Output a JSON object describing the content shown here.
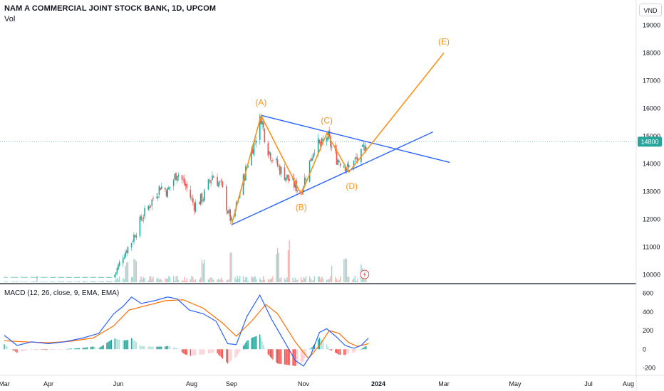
{
  "header": {
    "title": "NAM A COMMERCIAL JOINT STOCK BANK, 1D, UPCOM",
    "volume_label": "Vol",
    "currency": "VND",
    "indicator_label": "MACD (12, 26, close, 9, EMA, EMA)"
  },
  "colors": {
    "up": "#26a69a",
    "down": "#ef5350",
    "wave": "#f7931a",
    "trendline": "#2962ff",
    "macd": "#2962ff",
    "signal": "#ff6d00",
    "last_price_badge": "#26a69a"
  },
  "chart_data": [
    {
      "type": "candlestick",
      "title": "NAM A COMMERCIAL JOINT STOCK BANK, 1D, UPCOM",
      "y_unit": "VND",
      "ylim": [
        9700,
        19400
      ],
      "y_ticks": [
        10000,
        11000,
        12000,
        13000,
        14000,
        15000,
        16000,
        17000,
        18000,
        19000
      ],
      "x_ticks": [
        "Mar",
        "Apr",
        "Jun",
        "Aug",
        "Sep",
        "Nov",
        "2024",
        "Mar",
        "May",
        "Jul",
        "Aug"
      ],
      "last_price": 14800,
      "grid": false,
      "price_path": [
        [
          "2023-03-01",
          9900
        ],
        [
          "2023-05-28",
          9900
        ],
        [
          "2023-06-05",
          10700
        ],
        [
          "2023-06-12",
          11200
        ],
        [
          "2023-06-20",
          12000
        ],
        [
          "2023-06-28",
          12600
        ],
        [
          "2023-07-06",
          13200
        ],
        [
          "2023-07-12",
          13000
        ],
        [
          "2023-07-20",
          13700
        ],
        [
          "2023-07-27",
          13200
        ],
        [
          "2023-08-03",
          12500
        ],
        [
          "2023-08-10",
          12800
        ],
        [
          "2023-08-17",
          13600
        ],
        [
          "2023-08-24",
          13200
        ],
        [
          "2023-08-29",
          12300
        ],
        [
          "2023-09-01",
          11900
        ],
        [
          "2023-09-06",
          12600
        ],
        [
          "2023-09-12",
          13600
        ],
        [
          "2023-09-18",
          14500
        ],
        [
          "2023-09-22",
          15000
        ],
        [
          "2023-09-26",
          15700
        ],
        [
          "2023-10-01",
          14600
        ],
        [
          "2023-10-06",
          14200
        ],
        [
          "2023-10-12",
          13800
        ],
        [
          "2023-10-18",
          13500
        ],
        [
          "2023-10-25",
          13200
        ],
        [
          "2023-10-30",
          13000
        ],
        [
          "2023-11-03",
          13600
        ],
        [
          "2023-11-07",
          14200
        ],
        [
          "2023-11-11",
          14800
        ],
        [
          "2023-11-15",
          14600
        ],
        [
          "2023-11-20",
          15000
        ],
        [
          "2023-11-24",
          14600
        ],
        [
          "2023-11-28",
          14200
        ],
        [
          "2023-12-04",
          14000
        ],
        [
          "2023-12-08",
          13800
        ],
        [
          "2023-12-13",
          14100
        ],
        [
          "2023-12-18",
          14300
        ],
        [
          "2023-12-22",
          14800
        ]
      ],
      "volume_spikes": [
        [
          "2023-03-25",
          0.15
        ],
        [
          "2023-06-08",
          0.5
        ],
        [
          "2023-06-15",
          0.55
        ],
        [
          "2023-08-10",
          0.6
        ],
        [
          "2023-09-01",
          0.8
        ],
        [
          "2023-10-10",
          0.9
        ],
        [
          "2023-10-20",
          1.0
        ],
        [
          "2023-11-25",
          0.5
        ],
        [
          "2023-12-05",
          0.55
        ],
        [
          "2023-12-18",
          0.45
        ]
      ],
      "elliott_waves": [
        {
          "label": "",
          "date": "2023-09-01",
          "value": 11800
        },
        {
          "label": "(A)",
          "date": "2023-09-26",
          "value": 15750
        },
        {
          "label": "(B)",
          "date": "2023-10-30",
          "value": 12900
        },
        {
          "label": "(C)",
          "date": "2023-11-20",
          "value": 15100
        },
        {
          "label": "(D)",
          "date": "2023-12-08",
          "value": 13700
        },
        {
          "label": "(E)",
          "date": "2024-03-01",
          "value": 18000
        }
      ],
      "trendlines": [
        {
          "from": [
            "2023-09-26",
            15750
          ],
          "to": [
            "2024-03-06",
            14050
          ]
        },
        {
          "from": [
            "2023-09-01",
            11800
          ],
          "to": [
            "2024-02-20",
            15150
          ]
        }
      ]
    },
    {
      "type": "line",
      "title": "MACD (12, 26, close, 9, EMA, EMA)",
      "ylim": [
        -280,
        680
      ],
      "y_ticks": [
        -200,
        0,
        200,
        400,
        600
      ],
      "series": [
        {
          "name": "MACD",
          "color": "#2962ff",
          "points": [
            [
              "2023-03-01",
              150
            ],
            [
              "2023-03-10",
              40
            ],
            [
              "2023-03-20",
              80
            ],
            [
              "2023-04-01",
              60
            ],
            [
              "2023-04-15",
              80
            ],
            [
              "2023-05-01",
              120
            ],
            [
              "2023-05-15",
              170
            ],
            [
              "2023-05-28",
              380
            ],
            [
              "2023-06-05",
              460
            ],
            [
              "2023-06-12",
              560
            ],
            [
              "2023-06-20",
              490
            ],
            [
              "2023-07-01",
              520
            ],
            [
              "2023-07-12",
              560
            ],
            [
              "2023-07-20",
              540
            ],
            [
              "2023-07-30",
              420
            ],
            [
              "2023-08-10",
              380
            ],
            [
              "2023-08-20",
              300
            ],
            [
              "2023-08-29",
              60
            ],
            [
              "2023-09-05",
              50
            ],
            [
              "2023-09-14",
              350
            ],
            [
              "2023-09-25",
              580
            ],
            [
              "2023-10-05",
              320
            ],
            [
              "2023-10-15",
              100
            ],
            [
              "2023-10-25",
              -120
            ],
            [
              "2023-11-01",
              -180
            ],
            [
              "2023-11-07",
              -60
            ],
            [
              "2023-11-14",
              180
            ],
            [
              "2023-11-20",
              220
            ],
            [
              "2023-11-28",
              130
            ],
            [
              "2023-12-05",
              40
            ],
            [
              "2023-12-12",
              10
            ],
            [
              "2023-12-18",
              40
            ],
            [
              "2023-12-24",
              120
            ]
          ]
        },
        {
          "name": "Signal",
          "color": "#ff6d00",
          "points": [
            [
              "2023-03-01",
              90
            ],
            [
              "2023-03-15",
              80
            ],
            [
              "2023-04-01",
              70
            ],
            [
              "2023-04-20",
              85
            ],
            [
              "2023-05-10",
              120
            ],
            [
              "2023-05-28",
              250
            ],
            [
              "2023-06-10",
              420
            ],
            [
              "2023-06-25",
              470
            ],
            [
              "2023-07-10",
              520
            ],
            [
              "2023-07-25",
              530
            ],
            [
              "2023-08-10",
              440
            ],
            [
              "2023-08-25",
              280
            ],
            [
              "2023-09-05",
              140
            ],
            [
              "2023-09-18",
              300
            ],
            [
              "2023-09-30",
              480
            ],
            [
              "2023-10-10",
              380
            ],
            [
              "2023-10-25",
              80
            ],
            [
              "2023-11-05",
              -100
            ],
            [
              "2023-11-15",
              60
            ],
            [
              "2023-11-22",
              200
            ],
            [
              "2023-11-30",
              170
            ],
            [
              "2023-12-08",
              70
            ],
            [
              "2023-12-15",
              30
            ],
            [
              "2023-12-24",
              60
            ]
          ]
        }
      ]
    }
  ]
}
